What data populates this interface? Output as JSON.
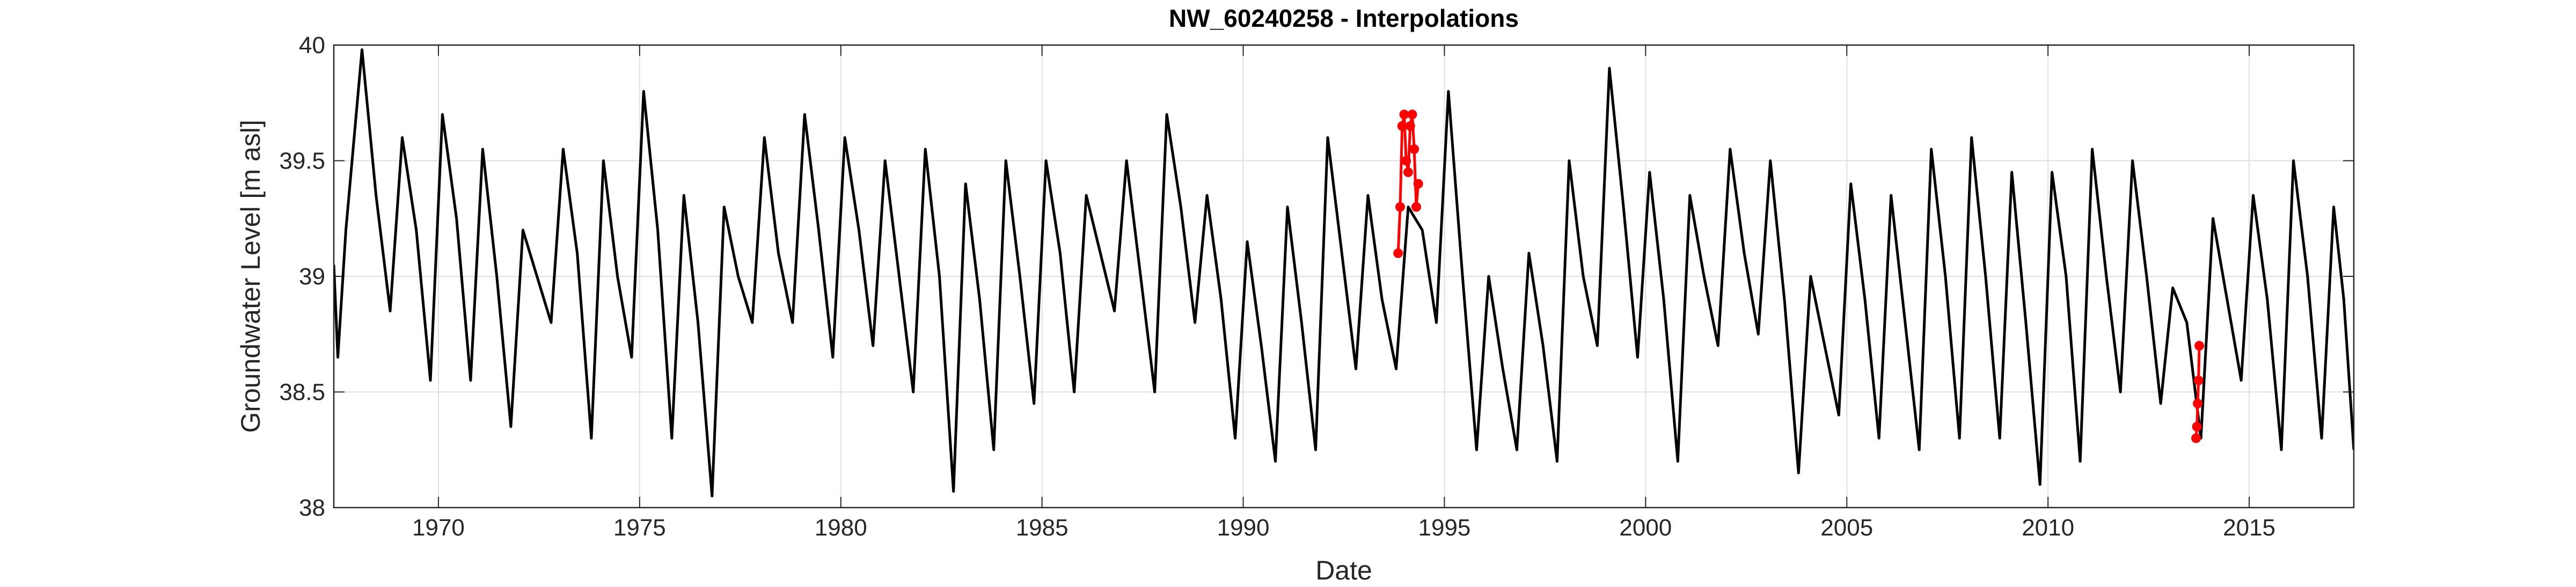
{
  "chart_data": {
    "type": "line",
    "title": "NW_60240258 - Interpolations",
    "xlabel": "Date",
    "ylabel": "Groundwater Level [m asl]",
    "xlim": [
      1967.4,
      2017.6
    ],
    "ylim": [
      38,
      40
    ],
    "xticks": [
      1970,
      1975,
      1980,
      1985,
      1990,
      1995,
      2000,
      2005,
      2010,
      2015
    ],
    "yticks": [
      38,
      38.5,
      39,
      39.5,
      40
    ],
    "grid": true,
    "series": [
      {
        "color": "#000000",
        "marker": false,
        "x": [
          1967.4,
          1967.5,
          1967.7,
          1968.1,
          1968.45,
          1968.8,
          1969.1,
          1969.45,
          1969.8,
          1970.1,
          1970.45,
          1970.8,
          1971.1,
          1971.45,
          1971.8,
          1972.1,
          1972.45,
          1972.8,
          1973.1,
          1973.45,
          1973.8,
          1974.1,
          1974.45,
          1974.8,
          1975.1,
          1975.45,
          1975.8,
          1976.1,
          1976.45,
          1976.8,
          1977.1,
          1977.45,
          1977.8,
          1978.1,
          1978.45,
          1978.8,
          1979.1,
          1979.45,
          1979.8,
          1980.1,
          1980.45,
          1980.8,
          1981.1,
          1981.45,
          1981.8,
          1982.1,
          1982.45,
          1982.8,
          1983.1,
          1983.45,
          1983.8,
          1984.1,
          1984.45,
          1984.8,
          1985.1,
          1985.45,
          1985.8,
          1986.1,
          1986.45,
          1986.8,
          1987.1,
          1987.45,
          1987.8,
          1988.1,
          1988.45,
          1988.8,
          1989.1,
          1989.45,
          1989.8,
          1990.1,
          1990.45,
          1990.8,
          1991.1,
          1991.45,
          1991.8,
          1992.1,
          1992.45,
          1992.8,
          1993.1,
          1993.45,
          1993.8,
          1994.1,
          1994.45,
          1994.8,
          1995.1,
          1995.45,
          1995.8,
          1996.1,
          1996.45,
          1996.8,
          1997.1,
          1997.45,
          1997.8,
          1998.1,
          1998.45,
          1998.8,
          1999.1,
          1999.45,
          1999.8,
          2000.1,
          2000.45,
          2000.8,
          2001.1,
          2001.45,
          2001.8,
          2002.1,
          2002.45,
          2002.8,
          2003.1,
          2003.45,
          2003.8,
          2004.1,
          2004.45,
          2004.8,
          2005.1,
          2005.45,
          2005.8,
          2006.1,
          2006.45,
          2006.8,
          2007.1,
          2007.45,
          2007.8,
          2008.1,
          2008.45,
          2008.8,
          2009.1,
          2009.45,
          2009.8,
          2010.1,
          2010.45,
          2010.8,
          2011.1,
          2011.45,
          2011.8,
          2012.1,
          2012.45,
          2012.8,
          2013.1,
          2013.45,
          2013.8,
          2014.1,
          2014.45,
          2014.8,
          2015.1,
          2015.45,
          2015.8,
          2016.1,
          2016.45,
          2016.8,
          2017.1,
          2017.35,
          2017.6
        ],
        "values": [
          39.05,
          38.65,
          39.2,
          39.98,
          39.35,
          38.85,
          39.6,
          39.2,
          38.55,
          39.7,
          39.25,
          38.55,
          39.55,
          39.0,
          38.35,
          39.2,
          39.0,
          38.8,
          39.55,
          39.1,
          38.3,
          39.5,
          39.0,
          38.65,
          39.8,
          39.2,
          38.3,
          39.35,
          38.8,
          38.05,
          39.3,
          39.0,
          38.8,
          39.6,
          39.1,
          38.8,
          39.7,
          39.2,
          38.65,
          39.6,
          39.2,
          38.7,
          39.5,
          39.0,
          38.5,
          39.55,
          39.0,
          38.07,
          39.4,
          38.9,
          38.25,
          39.5,
          39.0,
          38.45,
          39.5,
          39.1,
          38.5,
          39.35,
          39.1,
          38.85,
          39.5,
          39.0,
          38.5,
          39.7,
          39.3,
          38.8,
          39.35,
          38.9,
          38.3,
          39.15,
          38.7,
          38.2,
          39.3,
          38.8,
          38.25,
          39.6,
          39.1,
          38.6,
          39.35,
          38.9,
          38.6,
          39.3,
          39.2,
          38.8,
          39.8,
          39.0,
          38.25,
          39.0,
          38.6,
          38.25,
          39.1,
          38.7,
          38.2,
          39.5,
          39.0,
          38.7,
          39.9,
          39.3,
          38.65,
          39.45,
          38.9,
          38.2,
          39.35,
          39.0,
          38.7,
          39.55,
          39.1,
          38.75,
          39.5,
          38.9,
          38.15,
          39.0,
          38.7,
          38.4,
          39.4,
          38.9,
          38.3,
          39.35,
          38.8,
          38.25,
          39.55,
          39.0,
          38.3,
          39.6,
          39.0,
          38.3,
          39.45,
          38.8,
          38.1,
          39.45,
          39.0,
          38.2,
          39.55,
          39.0,
          38.5,
          39.5,
          39.0,
          38.45,
          38.95,
          38.8,
          38.3,
          39.25,
          38.9,
          38.55,
          39.35,
          38.9,
          38.25,
          39.5,
          39.0,
          38.3,
          39.3,
          38.9,
          38.25
        ]
      },
      {
        "color": "#ff0000",
        "marker": true,
        "x": [
          1993.85,
          1993.9,
          1993.95,
          1994.0,
          1994.05,
          1994.1,
          1994.15,
          1994.2,
          1994.25,
          1994.3,
          1994.35,
          2013.66,
          2013.68,
          2013.7,
          2013.72,
          2013.74,
          2013.76
        ],
        "values": [
          39.1,
          39.3,
          39.65,
          39.7,
          39.5,
          39.45,
          39.65,
          39.7,
          39.55,
          39.3,
          39.4,
          null,
          38.3,
          38.35,
          38.45,
          38.55,
          38.7
        ]
      }
    ]
  }
}
